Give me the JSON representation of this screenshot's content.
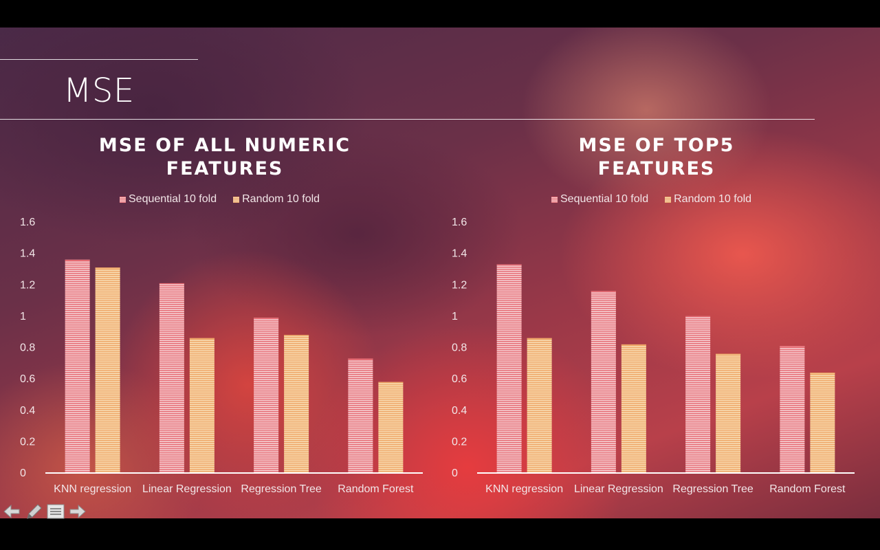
{
  "slide": {
    "title": "MSE"
  },
  "legend": {
    "sequential": "Sequential 10 fold",
    "random": "Random 10 fold"
  },
  "colors": {
    "sequential": "#e56a72",
    "random": "#eea566",
    "axis": "#ffffff",
    "text": "#f2e6e8"
  },
  "chart_data": [
    {
      "type": "bar",
      "title_line1": "MSE OF ALL NUMERIC",
      "title_line2": "FEATURES",
      "categories": [
        "KNN regression",
        "Linear Regression",
        "Regression Tree",
        "Random Forest"
      ],
      "series": [
        {
          "name": "Sequential 10 fold",
          "values": [
            1.36,
            1.21,
            0.99,
            0.73
          ]
        },
        {
          "name": "Random 10 fold",
          "values": [
            1.31,
            0.86,
            0.88,
            0.58
          ]
        }
      ],
      "ylim": [
        0,
        1.6
      ],
      "yticks": [
        "0",
        "0.2",
        "0.4",
        "0.6",
        "0.8",
        "1",
        "1.2",
        "1.4",
        "1.6"
      ],
      "grid": false,
      "legend_position": "top"
    },
    {
      "type": "bar",
      "title_line1": "MSE OF TOP5",
      "title_line2": "FEATURES",
      "categories": [
        "KNN regression",
        "Linear Regression",
        "Regression Tree",
        "Random Forest"
      ],
      "series": [
        {
          "name": "Sequential 10 fold",
          "values": [
            1.33,
            1.16,
            1.0,
            0.81
          ]
        },
        {
          "name": "Random 10 fold",
          "values": [
            0.86,
            0.82,
            0.76,
            0.64
          ]
        }
      ],
      "ylim": [
        0,
        1.6
      ],
      "yticks": [
        "0",
        "0.2",
        "0.4",
        "0.6",
        "0.8",
        "1",
        "1.2",
        "1.4",
        "1.6"
      ],
      "grid": false,
      "legend_position": "top"
    }
  ],
  "nav": {
    "icons": [
      "arrow-left-icon",
      "pen-icon",
      "menu-icon",
      "arrow-right-icon"
    ]
  }
}
